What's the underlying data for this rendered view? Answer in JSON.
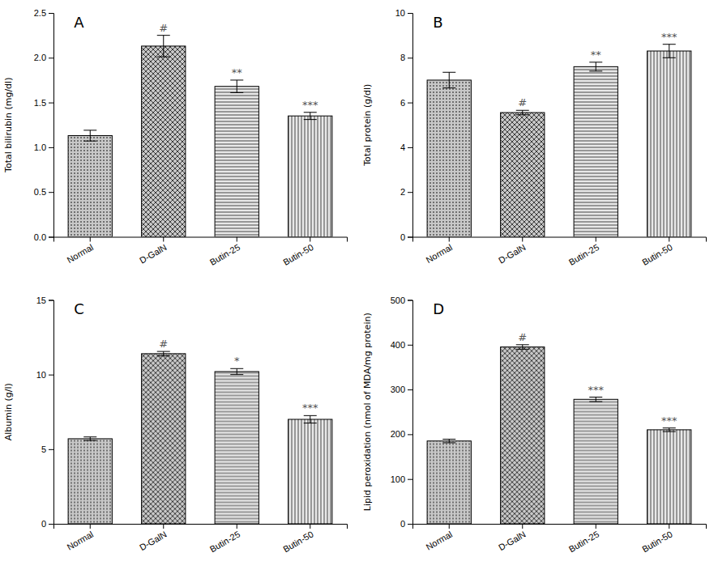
{
  "chart_data": [
    {
      "type": "bar",
      "title": "A",
      "ylabel": "Total bilirubin (mg/dl)",
      "categories": [
        "Normal",
        "D-GalN",
        "Butin-25",
        "Butin-50"
      ],
      "values": [
        1.13,
        2.13,
        1.68,
        1.35
      ],
      "errors": [
        0.06,
        0.12,
        0.07,
        0.04
      ],
      "ylim": [
        0,
        2.5
      ],
      "yticks": [
        {
          "value": 0,
          "label": "0.0"
        },
        0.5,
        {
          "value": 1,
          "label": "1.0"
        },
        1.5,
        {
          "value": 2,
          "label": "2.0"
        },
        2.5
      ],
      "annotations": [
        null,
        "#",
        "**",
        "***"
      ],
      "colors": [
        "#c8c8c8",
        "#c8c8c8",
        "#e8e8e8",
        "#e8e8e8"
      ],
      "grid": false
    },
    {
      "type": "bar",
      "title": "B",
      "ylabel": "Total protein (g/dl)",
      "categories": [
        "Normal",
        "D-GalN",
        "Butin-25",
        "Butin-50"
      ],
      "values": [
        7.0,
        5.55,
        7.6,
        8.3
      ],
      "errors": [
        0.35,
        0.1,
        0.2,
        0.3
      ],
      "ylim": [
        0,
        10
      ],
      "yticks": [
        0,
        2,
        4,
        6,
        8,
        10
      ],
      "annotations": [
        null,
        "#",
        "**",
        "***"
      ],
      "colors": [
        "#c8c8c8",
        "#c8c8c8",
        "#e8e8e8",
        "#e8e8e8"
      ],
      "grid": false
    },
    {
      "type": "bar",
      "title": "C",
      "ylabel": "Albumin (g/l)",
      "categories": [
        "Normal",
        "D-GalN",
        "Butin-25",
        "Butin-50"
      ],
      "values": [
        5.7,
        11.4,
        10.2,
        7.0
      ],
      "errors": [
        0.12,
        0.15,
        0.2,
        0.25
      ],
      "ylim": [
        0,
        15
      ],
      "yticks": [
        0,
        5,
        10,
        15
      ],
      "annotations": [
        null,
        "#",
        "*",
        "***"
      ],
      "colors": [
        "#c8c8c8",
        "#c8c8c8",
        "#e8e8e8",
        "#e8e8e8"
      ],
      "grid": false
    },
    {
      "type": "bar",
      "title": "D",
      "ylabel": "Lipid peroxidation (nmol of MDA/mg protein)",
      "categories": [
        "Normal",
        "D-GalN",
        "Butin-25",
        "Butin-50"
      ],
      "values": [
        185,
        395,
        278,
        210
      ],
      "errors": [
        4,
        5,
        5,
        4
      ],
      "ylim": [
        0,
        500
      ],
      "yticks": [
        0,
        100,
        200,
        300,
        400,
        500
      ],
      "annotations": [
        null,
        "#",
        "***",
        "***"
      ],
      "colors": [
        "#c8c8c8",
        "#c8c8c8",
        "#e8e8e8",
        "#e8e8e8"
      ],
      "grid": false
    }
  ]
}
